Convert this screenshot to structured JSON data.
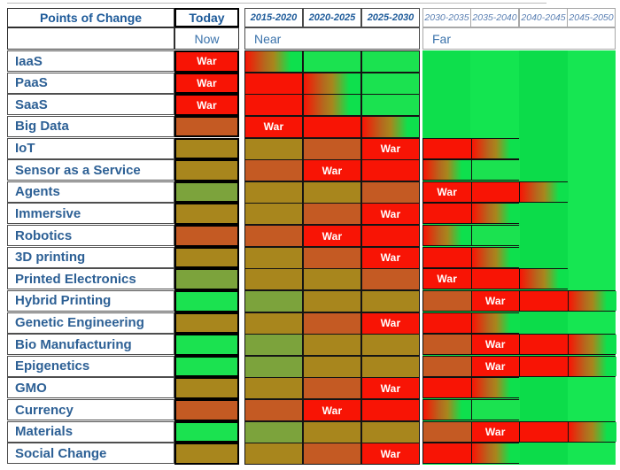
{
  "header": {
    "points_of_change": "Points of Change",
    "today": "Today",
    "now": "Now",
    "near": "Near",
    "far": "Far"
  },
  "war_label": "War",
  "palette": {
    "war_red": "#f81405",
    "dark_orange": "#c45a23",
    "olive": "#a8861d",
    "yellow_green": "#7ca33c",
    "bright_green": "#1be250",
    "far_field_green": "#0ee04d",
    "header_text_blue": "#1d5a99",
    "row_label_blue": "#2d6095",
    "group_label_blue": "#3a72ab",
    "far_year_blue": "#5b80b3"
  },
  "chart_data": {
    "type": "heatmap",
    "title": "Points of Change",
    "columns": [
      "Today",
      "2015-2020",
      "2020-2025",
      "2025-2030",
      "2030-2035",
      "2035-2040",
      "2040-2045",
      "2045-2050"
    ],
    "column_groups": [
      {
        "label": "Now",
        "columns": [
          "Today"
        ]
      },
      {
        "label": "Near",
        "columns": [
          "2015-2020",
          "2020-2025",
          "2025-2030"
        ]
      },
      {
        "label": "Far",
        "columns": [
          "2030-2035",
          "2035-2040",
          "2040-2045",
          "2045-2050"
        ]
      }
    ],
    "cell_value_legend": {
      "war": "peak disruption, red cell labeled War",
      "red": "high disruption, red",
      "orange": "rising disruption, dark orange",
      "olive": "moderate, olive brown",
      "ygreen": "low-moderate, yellow green",
      "green": "stable, bright green (bordered cell)",
      "grad": "transition gradient red to green",
      "sea": "stable green field, no cell border"
    },
    "rows": [
      {
        "label": "IaaS",
        "war_column": "Today",
        "far_outline": 0,
        "cells": [
          "war",
          "grad",
          "green",
          "green",
          "sea",
          "sea",
          "sea",
          "sea"
        ]
      },
      {
        "label": "PaaS",
        "war_column": "Today",
        "far_outline": 0,
        "cells": [
          "war",
          "red",
          "grad",
          "green",
          "sea",
          "sea",
          "sea",
          "sea"
        ]
      },
      {
        "label": "SaaS",
        "war_column": "Today",
        "far_outline": 0,
        "cells": [
          "war",
          "red",
          "grad",
          "green",
          "sea",
          "sea",
          "sea",
          "sea"
        ]
      },
      {
        "label": "Big Data",
        "war_column": "2015-2020",
        "far_outline": 0,
        "cells": [
          "orange",
          "war",
          "red",
          "grad",
          "sea",
          "sea",
          "sea",
          "sea"
        ]
      },
      {
        "label": "IoT",
        "war_column": "2025-2030",
        "far_outline": 2,
        "cells": [
          "olive",
          "olive",
          "orange",
          "war",
          "red",
          "grad",
          "sea",
          "sea"
        ]
      },
      {
        "label": "Sensor as a Service",
        "war_column": "2020-2025",
        "far_outline": 2,
        "cells": [
          "olive",
          "orange",
          "war",
          "red",
          "grad",
          "green",
          "sea",
          "sea"
        ]
      },
      {
        "label": "Agents",
        "war_column": "2030-2035",
        "far_outline": 3,
        "cells": [
          "ygreen",
          "olive",
          "olive",
          "orange",
          "war",
          "red",
          "grad",
          "sea"
        ]
      },
      {
        "label": "Immersive",
        "war_column": "2025-2030",
        "far_outline": 2,
        "cells": [
          "olive",
          "olive",
          "orange",
          "war",
          "red",
          "grad",
          "sea",
          "sea"
        ]
      },
      {
        "label": "Robotics",
        "war_column": "2020-2025",
        "far_outline": 2,
        "cells": [
          "orange",
          "orange",
          "war",
          "red",
          "grad",
          "green",
          "sea",
          "sea"
        ]
      },
      {
        "label": "3D printing",
        "war_column": "2025-2030",
        "far_outline": 2,
        "cells": [
          "olive",
          "olive",
          "orange",
          "war",
          "red",
          "grad",
          "sea",
          "sea"
        ]
      },
      {
        "label": "Printed Electronics",
        "war_column": "2030-2035",
        "far_outline": 3,
        "cells": [
          "ygreen",
          "olive",
          "olive",
          "orange",
          "war",
          "red",
          "grad",
          "sea"
        ]
      },
      {
        "label": "Hybrid Printing",
        "war_column": "2035-2040",
        "far_outline": 4,
        "cells": [
          "green",
          "ygreen",
          "olive",
          "olive",
          "orange",
          "war",
          "red",
          "grad"
        ]
      },
      {
        "label": "Genetic Engineering",
        "war_column": "2025-2030",
        "far_outline": 2,
        "cells": [
          "olive",
          "olive",
          "orange",
          "war",
          "red",
          "grad",
          "sea",
          "sea"
        ]
      },
      {
        "label": "Bio Manufacturing",
        "war_column": "2035-2040",
        "far_outline": 4,
        "cells": [
          "green",
          "ygreen",
          "olive",
          "olive",
          "orange",
          "war",
          "red",
          "grad"
        ]
      },
      {
        "label": "Epigenetics",
        "war_column": "2035-2040",
        "far_outline": 4,
        "cells": [
          "green",
          "ygreen",
          "olive",
          "olive",
          "orange",
          "war",
          "red",
          "grad"
        ]
      },
      {
        "label": "GMO",
        "war_column": "2025-2030",
        "far_outline": 2,
        "cells": [
          "olive",
          "olive",
          "orange",
          "war",
          "red",
          "grad",
          "sea",
          "sea"
        ]
      },
      {
        "label": "Currency",
        "war_column": "2020-2025",
        "far_outline": 2,
        "cells": [
          "orange",
          "orange",
          "war",
          "red",
          "grad",
          "green",
          "sea",
          "sea"
        ]
      },
      {
        "label": "Materials",
        "war_column": "2035-2040",
        "far_outline": 4,
        "cells": [
          "green",
          "ygreen",
          "olive",
          "olive",
          "orange",
          "war",
          "red",
          "grad"
        ]
      },
      {
        "label": "Social Change",
        "war_column": "2025-2030",
        "far_outline": 2,
        "cells": [
          "olive",
          "olive",
          "orange",
          "war",
          "red",
          "grad",
          "sea",
          "sea"
        ]
      }
    ]
  }
}
